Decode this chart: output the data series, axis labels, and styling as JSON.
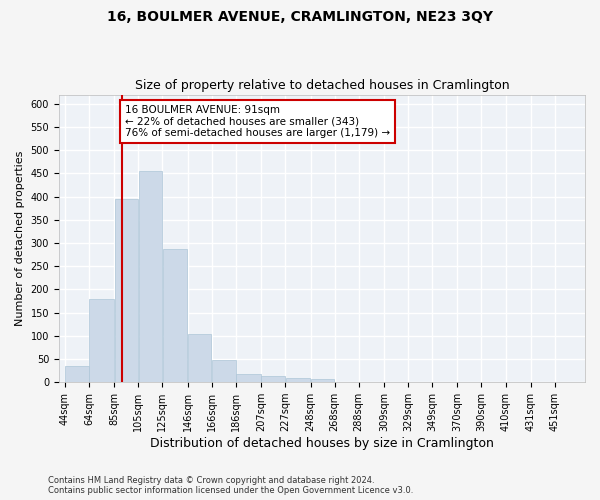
{
  "title": "16, BOULMER AVENUE, CRAMLINGTON, NE23 3QY",
  "subtitle": "Size of property relative to detached houses in Cramlington",
  "xlabel": "Distribution of detached houses by size in Cramlington",
  "ylabel": "Number of detached properties",
  "bar_color": "#ccd9e8",
  "bar_edgecolor": "#aec6d8",
  "background_color": "#eef2f7",
  "grid_color": "#ffffff",
  "vline_x": 91,
  "vline_color": "#cc0000",
  "annotation_text": "16 BOULMER AVENUE: 91sqm\n← 22% of detached houses are smaller (343)\n76% of semi-detached houses are larger (1,179) →",
  "annotation_box_facecolor": "#ffffff",
  "annotation_box_edgecolor": "#cc0000",
  "bins": [
    44,
    64,
    85,
    105,
    125,
    146,
    166,
    186,
    207,
    227,
    248,
    268,
    288,
    309,
    329,
    349,
    370,
    390,
    410,
    431,
    451
  ],
  "counts": [
    36,
    180,
    395,
    455,
    287,
    103,
    47,
    18,
    13,
    10,
    6,
    1,
    0,
    0,
    0,
    0,
    0,
    1,
    0,
    0
  ],
  "ylim": [
    0,
    620
  ],
  "yticks": [
    0,
    50,
    100,
    150,
    200,
    250,
    300,
    350,
    400,
    450,
    500,
    550,
    600
  ],
  "footer_text": "Contains HM Land Registry data © Crown copyright and database right 2024.\nContains public sector information licensed under the Open Government Licence v3.0.",
  "title_fontsize": 10,
  "subtitle_fontsize": 9,
  "tick_fontsize": 7,
  "xlabel_fontsize": 9,
  "ylabel_fontsize": 8,
  "annotation_fontsize": 7.5
}
